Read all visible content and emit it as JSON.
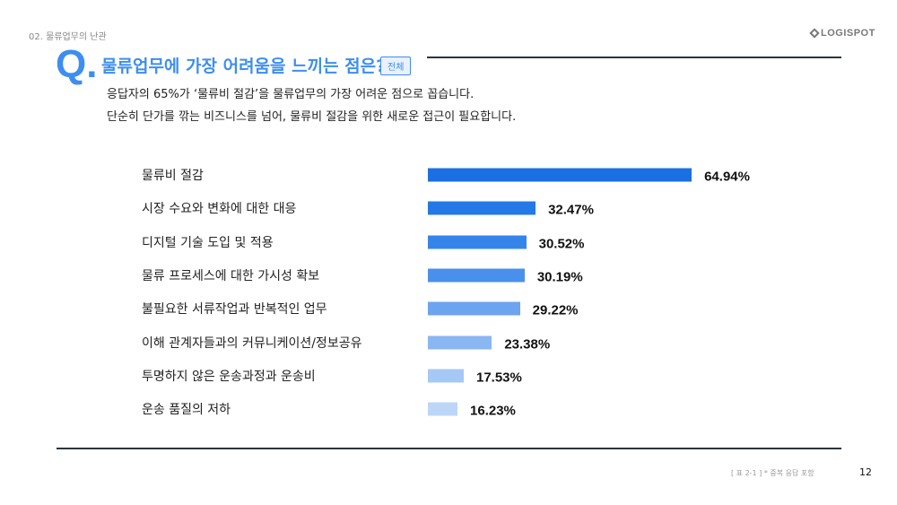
{
  "header": {
    "section": "02. 물류업무의 난관",
    "logo": "LOGISPOT"
  },
  "question": {
    "mark": "Q.",
    "title": "물류업무에 가장 어려움을 느끼는 점은?",
    "badge": "전체",
    "lines": [
      "응답자의 65%가 ‘물류비 절감’을 물류업무의 가장 어려운 점으로 꼽습니다.",
      "단순히 단가를 깎는 비즈니스를 넘어, 물류비 절감을 위한 새로운 접근이 필요합니다."
    ]
  },
  "chart_data": {
    "type": "bar",
    "orientation": "horizontal",
    "title": "",
    "xlabel": "",
    "ylabel": "",
    "xlim": [
      10,
      66
    ],
    "categories": [
      "물류비 절감",
      "시장 수요와 변화에 대한 대응",
      "디지털 기술 도입 및 적용",
      "물류 프로세스에 대한 가시성 확보",
      "불필요한 서류작업과 반복적인 업무",
      "이해 관계자들과의 커뮤니케이션/정보공유",
      "투명하지 않은 운송과정과 운송비",
      "운송 품질의 저하"
    ],
    "values": [
      64.94,
      32.47,
      30.52,
      30.19,
      29.22,
      23.38,
      17.53,
      16.23
    ],
    "value_labels": [
      "64.94%",
      "32.47%",
      "30.52%",
      "30.19%",
      "29.22%",
      "23.38%",
      "17.53%",
      "16.23%"
    ],
    "colors": [
      "#1a6fe3",
      "#2479e6",
      "#3584ea",
      "#4990ec",
      "#6ca4ef",
      "#8ab7f2",
      "#a6c8f5",
      "#bcd6f8"
    ]
  },
  "footer": {
    "note": "[ 표 2-1 ] * 중복 응답 포함",
    "page": "12"
  }
}
